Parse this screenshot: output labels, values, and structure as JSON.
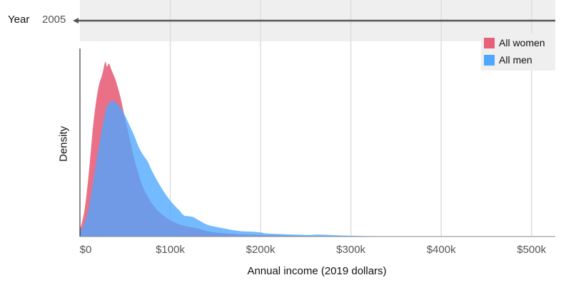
{
  "slider": {
    "label": "Year",
    "value": "2005",
    "range": [
      2005,
      2019
    ]
  },
  "chart_data": {
    "type": "area",
    "title": "",
    "xlabel": "Annual income (2019 dollars)",
    "ylabel": "Density",
    "xlim": [
      0,
      520000
    ],
    "x_tick_values": [
      0,
      100000,
      200000,
      300000,
      400000,
      500000
    ],
    "x_tick_labels": [
      "$0",
      "$100k",
      "$200k",
      "$300k",
      "$400k",
      "$500k"
    ],
    "grid": "vertical",
    "legend_position": "top-right",
    "series": [
      {
        "name": "All women",
        "color": "#e8607a",
        "x": [
          0,
          5000,
          10000,
          15000,
          20000,
          25000,
          28000,
          30000,
          32000,
          35000,
          38000,
          40000,
          45000,
          50000,
          55000,
          60000,
          65000,
          70000,
          80000,
          90000,
          100000,
          110000,
          120000,
          130000,
          140000,
          150000,
          175000,
          200000,
          250000,
          300000,
          520000
        ],
        "y": [
          0.04,
          0.16,
          0.4,
          0.7,
          0.9,
          1.0,
          1.07,
          1.04,
          1.06,
          1.02,
          0.98,
          0.95,
          0.85,
          0.72,
          0.6,
          0.48,
          0.38,
          0.3,
          0.2,
          0.14,
          0.1,
          0.075,
          0.06,
          0.05,
          0.035,
          0.025,
          0.015,
          0.01,
          0.004,
          0.002,
          0.0
        ]
      },
      {
        "name": "All men",
        "color": "#4da6ff",
        "x": [
          0,
          5000,
          10000,
          15000,
          20000,
          25000,
          28000,
          30000,
          35000,
          40000,
          45000,
          50000,
          55000,
          60000,
          65000,
          70000,
          75000,
          80000,
          90000,
          100000,
          110000,
          115000,
          120000,
          125000,
          130000,
          140000,
          150000,
          175000,
          190000,
          200000,
          210000,
          250000,
          265000,
          300000,
          350000,
          520000
        ],
        "y": [
          0.03,
          0.08,
          0.18,
          0.35,
          0.52,
          0.68,
          0.76,
          0.8,
          0.83,
          0.82,
          0.79,
          0.74,
          0.68,
          0.62,
          0.55,
          0.5,
          0.46,
          0.4,
          0.3,
          0.22,
          0.16,
          0.13,
          0.125,
          0.12,
          0.105,
          0.075,
          0.06,
          0.035,
          0.03,
          0.025,
          0.018,
          0.01,
          0.012,
          0.005,
          0.002,
          0.0
        ]
      }
    ]
  }
}
